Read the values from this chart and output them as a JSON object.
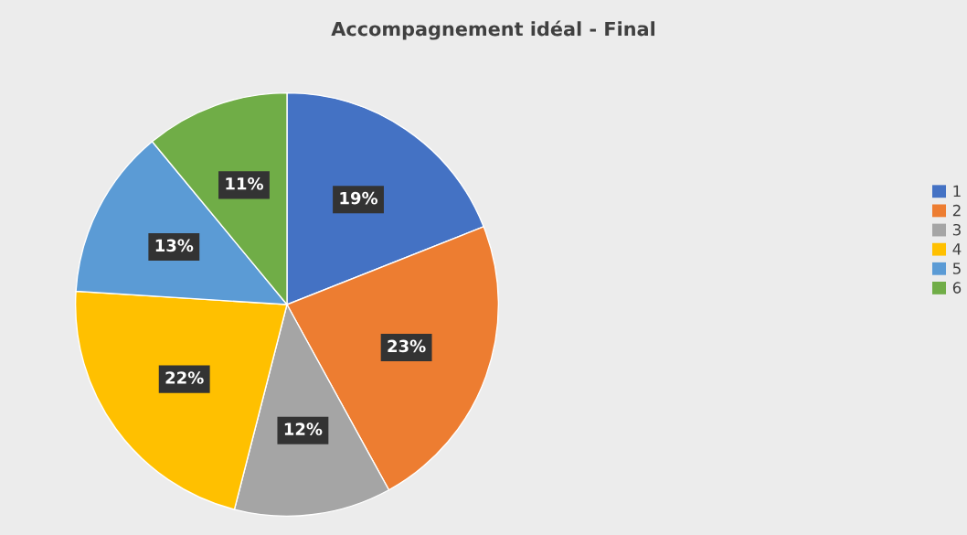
{
  "chart_data": {
    "type": "pie",
    "title": "Accompagnement idéal - Final",
    "categories": [
      "1",
      "2",
      "3",
      "4",
      "5",
      "6"
    ],
    "values": [
      19,
      23,
      12,
      22,
      13,
      11
    ],
    "colors": [
      "#4472c4",
      "#ed7d31",
      "#a5a5a5",
      "#ffc000",
      "#5b9bd5",
      "#70ad47"
    ],
    "value_labels": [
      "19%",
      "23%",
      "12%",
      "22%",
      "13%",
      "11%"
    ],
    "legend": "right"
  }
}
